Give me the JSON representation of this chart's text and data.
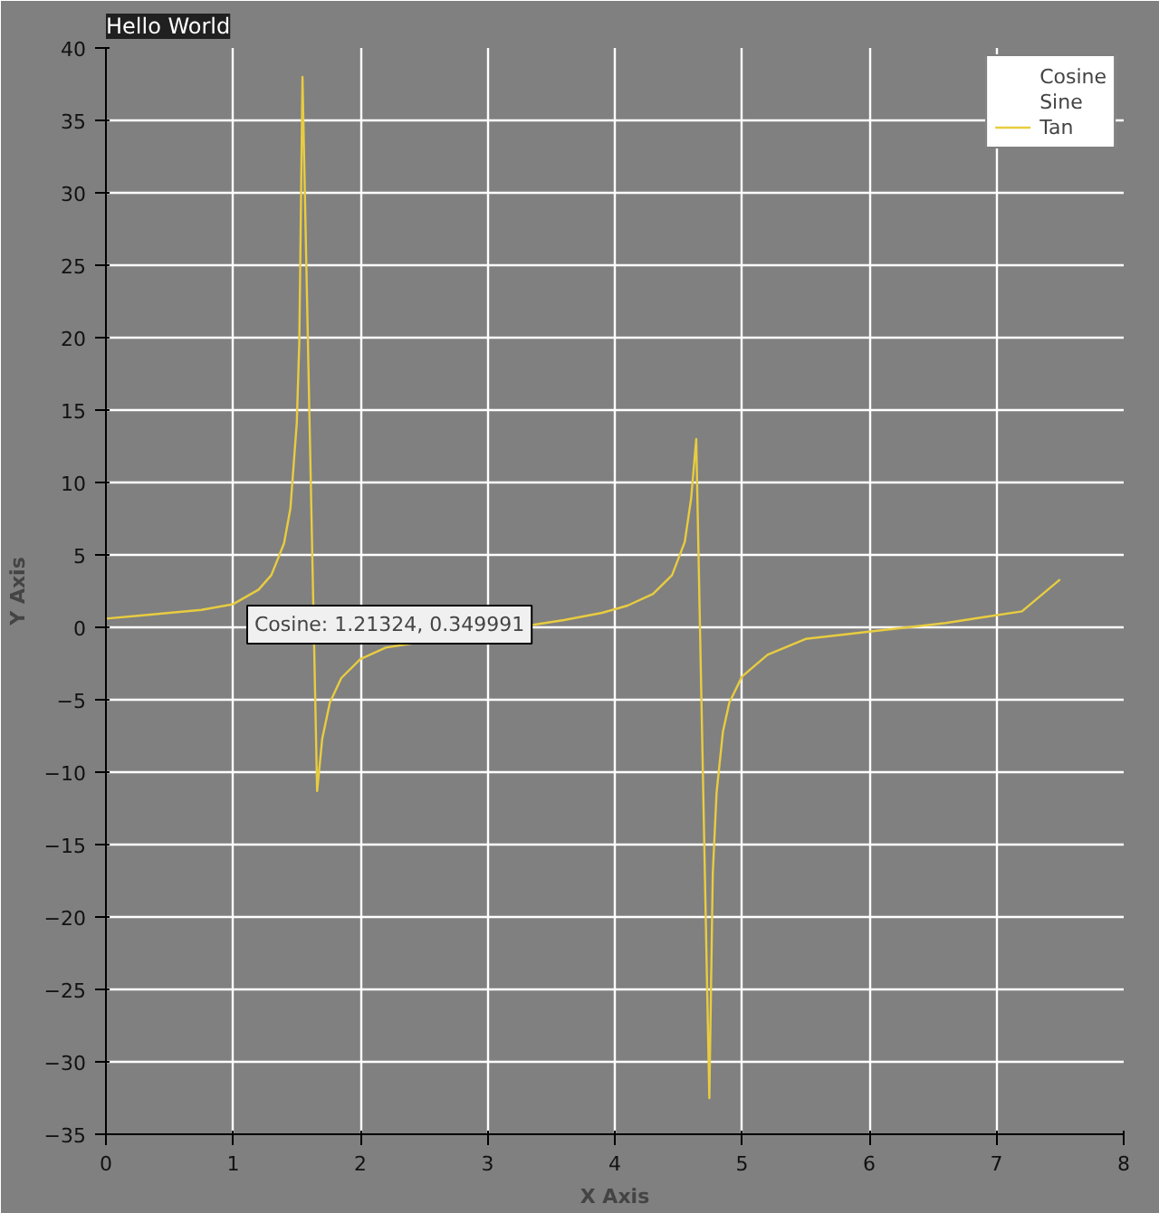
{
  "chart_data": {
    "type": "line",
    "title": "Hello World",
    "xlabel": "X Axis",
    "ylabel": "Y Axis",
    "xlim": [
      0,
      8
    ],
    "ylim": [
      -35,
      40
    ],
    "xticks": [
      0,
      1,
      2,
      3,
      4,
      5,
      6,
      7,
      8
    ],
    "yticks": [
      -35,
      -30,
      -25,
      -20,
      -15,
      -10,
      -5,
      0,
      5,
      10,
      15,
      20,
      25,
      30,
      35,
      40
    ],
    "grid": true,
    "legend": "top right",
    "series": [
      {
        "name": "Cosine"
      },
      {
        "name": "Sine"
      },
      {
        "name": "Tan",
        "color": "#e8cc40",
        "x": [
          0,
          0.25,
          0.5,
          0.75,
          1.0,
          1.2,
          1.3,
          1.4,
          1.45,
          1.5,
          1.52,
          1.545,
          1.66,
          1.7,
          1.76,
          1.85,
          2.0,
          2.2,
          3.6,
          3.9,
          4.1,
          4.3,
          4.45,
          4.55,
          4.6,
          4.64,
          4.743,
          4.77,
          4.8,
          4.85,
          4.9,
          5.0,
          5.2,
          5.5,
          5.8,
          6.0,
          6.3,
          6.6,
          6.9,
          7.2,
          7.5
        ],
        "values": [
          0.6,
          0.8,
          1.0,
          1.2,
          1.6,
          2.6,
          3.6,
          5.8,
          8.2,
          14.1,
          19.7,
          38.0,
          -11.3,
          -7.7,
          -5.2,
          -3.5,
          -2.2,
          -1.4,
          0.5,
          1.0,
          1.5,
          2.3,
          3.6,
          5.9,
          8.9,
          13.0,
          -32.5,
          -17.0,
          -11.4,
          -7.2,
          -5.2,
          -3.4,
          -1.9,
          -0.8,
          -0.5,
          -0.3,
          0.0,
          0.3,
          0.7,
          1.1,
          3.3
        ]
      }
    ],
    "annotations": [
      "Cosine: 1.21324, 0.349991"
    ]
  }
}
